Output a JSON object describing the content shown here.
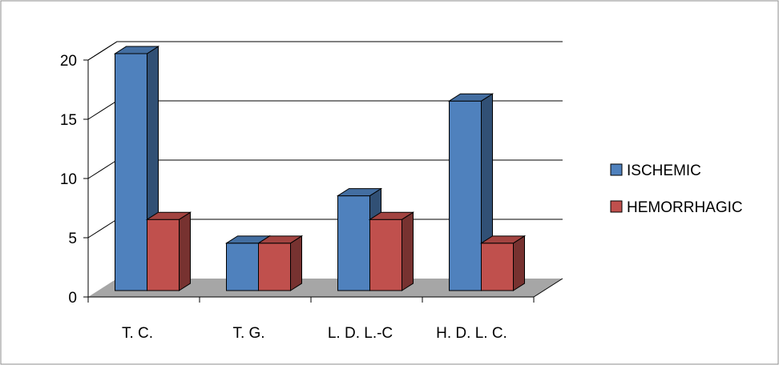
{
  "chart_data": {
    "type": "bar",
    "style": "3d-clustered-column",
    "categories": [
      "T. C.",
      "T. G.",
      "L. D. L.-C",
      "H. D. L. C."
    ],
    "series": [
      {
        "name": "ISCHEMIC",
        "values": [
          20,
          4,
          8,
          16
        ],
        "color": "#4f81bd"
      },
      {
        "name": "HEMORRHAGIC",
        "values": [
          6,
          4,
          6,
          4
        ],
        "color": "#c0504d"
      }
    ],
    "yticks": [
      0,
      5,
      10,
      15,
      20
    ],
    "ylim": [
      0,
      20
    ],
    "grid": true,
    "legend": "right",
    "floor_color": "#a6a6a6"
  }
}
